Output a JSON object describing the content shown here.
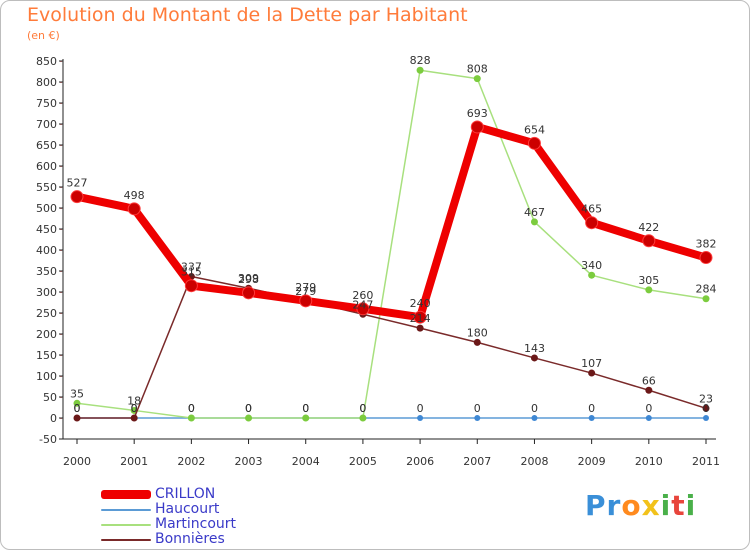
{
  "header": {
    "title": "Evolution du Montant de la Dette par Habitant",
    "unit": "(en €)"
  },
  "logo": {
    "text": "Proxiti"
  },
  "chart_data": {
    "type": "line",
    "title": "Evolution du Montant de la Dette par Habitant",
    "ylabel": "(en €)",
    "xlabel": "",
    "x": [
      "2000",
      "2001",
      "2002",
      "2003",
      "2004",
      "2005",
      "2006",
      "2007",
      "2008",
      "2009",
      "2010",
      "2011"
    ],
    "ylim": [
      -50,
      850
    ],
    "yticks": [
      -50,
      0,
      50,
      100,
      150,
      200,
      250,
      300,
      350,
      400,
      450,
      500,
      550,
      600,
      650,
      700,
      750,
      800,
      850
    ],
    "grid": false,
    "legend_position": "bottom-left",
    "series": [
      {
        "name": "CRILLON",
        "color": "#ee0000",
        "point_color": "#cc0000",
        "values": [
          527,
          498,
          315,
          298,
          279,
          260,
          240,
          693,
          654,
          465,
          422,
          382
        ],
        "labels": [
          "527",
          "498",
          "315",
          "298",
          "279",
          "260",
          "240",
          "693",
          "654",
          "465",
          "422",
          "382"
        ]
      },
      {
        "name": "Haucourt",
        "color": "#5b9bd5",
        "point_color": "#3f88d4",
        "values": [
          0,
          0,
          0,
          0,
          0,
          0,
          0,
          0,
          0,
          0,
          0,
          0
        ],
        "labels": [
          "0",
          "0",
          "0",
          "0",
          "0",
          "0",
          "0",
          "0",
          "0",
          "0",
          "0",
          "0"
        ]
      },
      {
        "name": "Martincourt",
        "color": "#a8e07e",
        "point_color": "#7ccc3e",
        "values": [
          35,
          18,
          0,
          0,
          0,
          0,
          828,
          808,
          467,
          340,
          305,
          284
        ],
        "labels": [
          "35",
          "18",
          "0",
          "0",
          "0",
          "0",
          "828",
          "808",
          "467",
          "340",
          "305",
          "284"
        ]
      },
      {
        "name": "Bonnières",
        "color": "#7a2a2a",
        "point_color": "#6b1818",
        "values": [
          0,
          0,
          337,
          309,
          279,
          247,
          214,
          180,
          143,
          107,
          66,
          23
        ],
        "labels": [
          "0",
          "0",
          "337",
          "309",
          "279",
          "247",
          "214",
          "180",
          "143",
          "107",
          "66",
          "23"
        ]
      }
    ]
  }
}
